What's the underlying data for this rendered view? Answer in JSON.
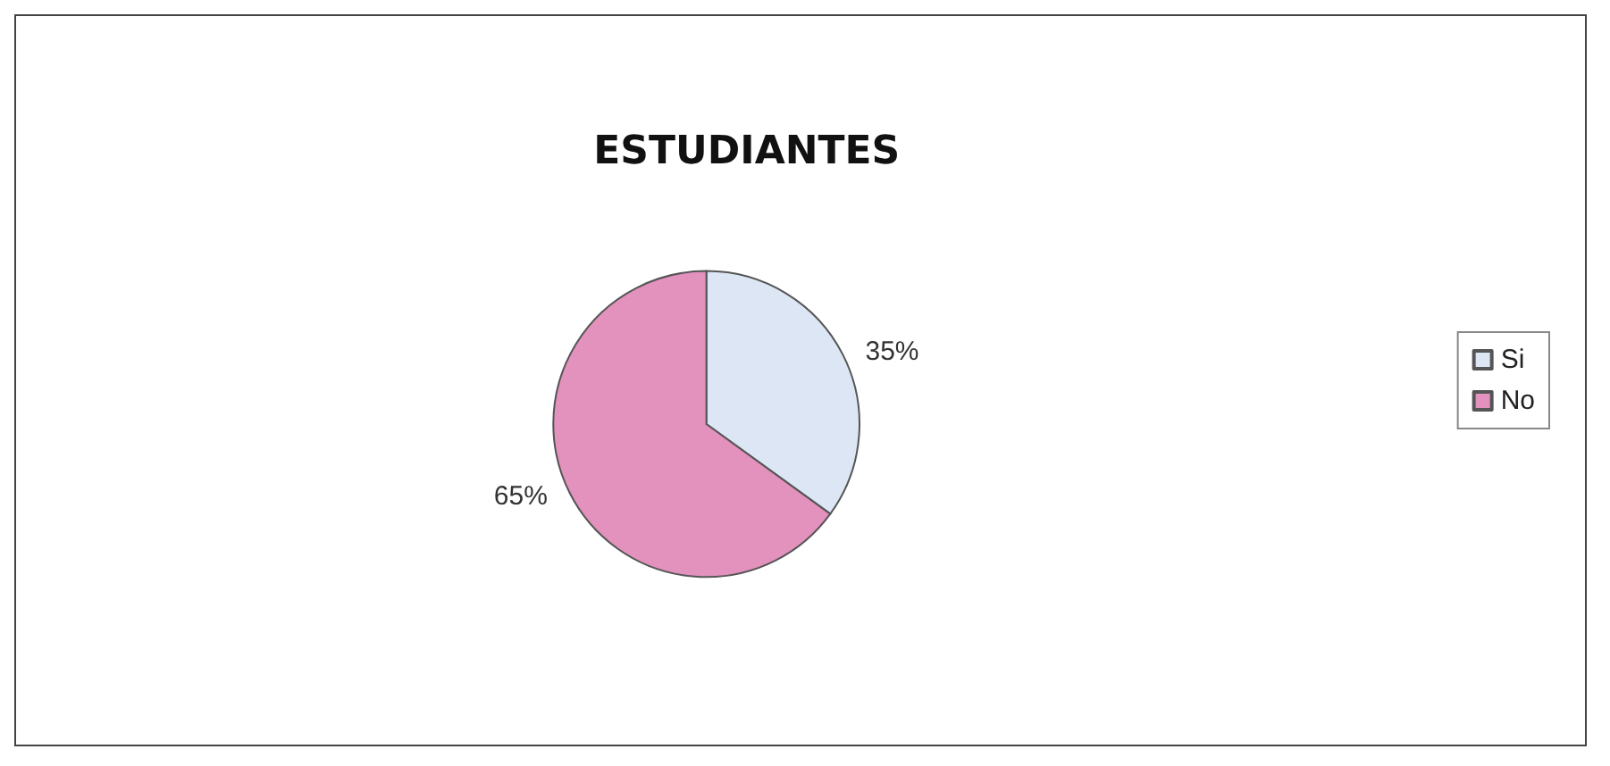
{
  "chart_data": {
    "type": "pie",
    "title": "ESTUDIANTES",
    "categories": [
      "Si",
      "No"
    ],
    "values": [
      35,
      65
    ],
    "value_labels": [
      "35%",
      "65%"
    ],
    "colors": [
      "#dce6f4",
      "#e391bd"
    ],
    "legend": "right"
  }
}
